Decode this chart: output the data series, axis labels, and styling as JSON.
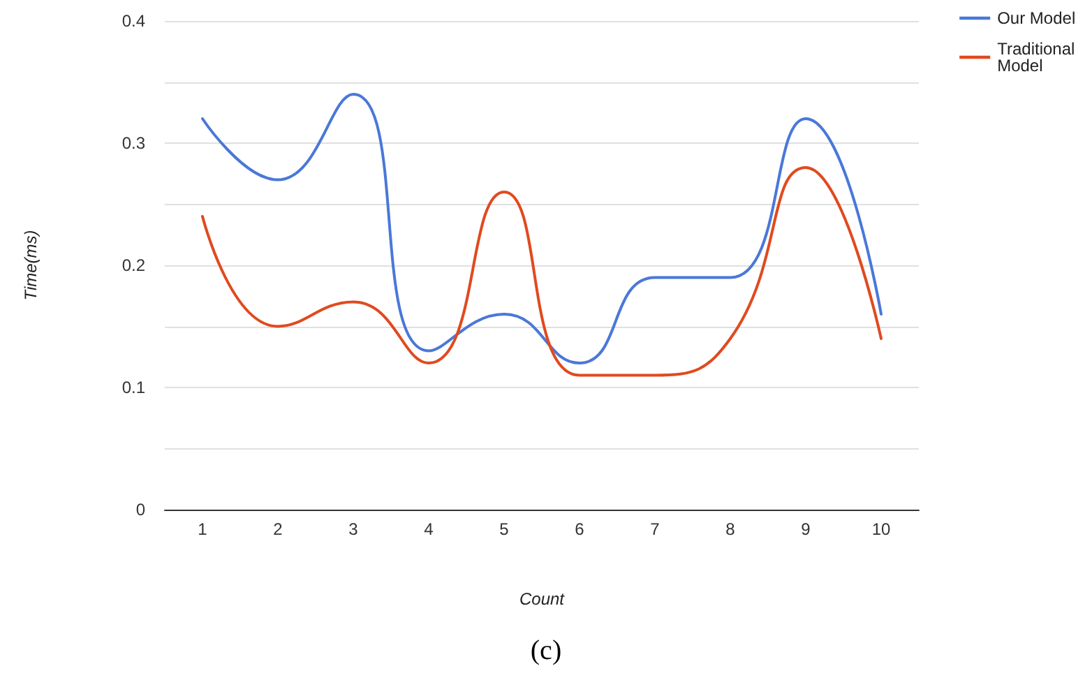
{
  "chart_data": {
    "type": "line",
    "xlabel": "Count",
    "ylabel": "Time(ms)",
    "categories": [
      "1",
      "2",
      "3",
      "4",
      "5",
      "6",
      "7",
      "8",
      "9",
      "10"
    ],
    "series": [
      {
        "name": "Our Model",
        "color": "#4a78d8",
        "values": [
          0.32,
          0.27,
          0.34,
          0.13,
          0.16,
          0.12,
          0.19,
          0.19,
          0.32,
          0.16
        ]
      },
      {
        "name": "Traditional Model",
        "color": "#e04a1f",
        "values": [
          0.24,
          0.15,
          0.17,
          0.12,
          0.26,
          0.11,
          0.11,
          0.14,
          0.28,
          0.14
        ]
      }
    ],
    "ylim": [
      0,
      0.4
    ],
    "yticks": [
      0,
      {
        "value": 0.05,
        "label": null
      },
      0.1,
      {
        "value": 0.15,
        "label": null
      },
      0.2,
      {
        "value": 0.25,
        "label": null
      },
      0.3,
      {
        "value": 0.35,
        "label": null
      },
      0.4
    ],
    "grid": "y",
    "legend": "top right",
    "marker": "none",
    "annotations": [
      "(c)"
    ]
  }
}
